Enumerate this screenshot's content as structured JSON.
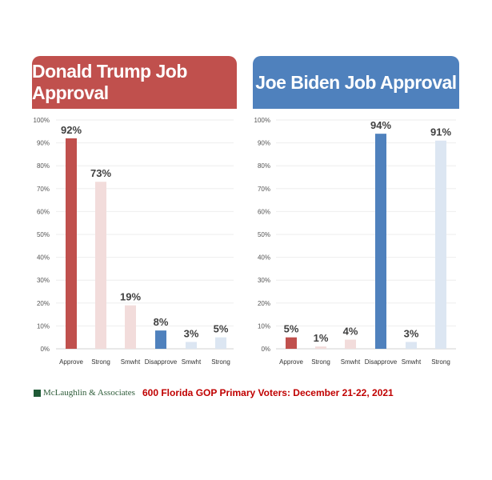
{
  "chart_data": [
    {
      "type": "bar",
      "title": "Donald Trump Job Approval",
      "categories": [
        "Approve",
        "Strong",
        "Smwht",
        "Disapprove",
        "Smwht",
        "Strong"
      ],
      "values": [
        92,
        73,
        19,
        8,
        3,
        5
      ],
      "data_labels": [
        "92%",
        "73%",
        "19%",
        "8%",
        "3%",
        "5%"
      ],
      "colors": [
        "#c0504d",
        "#f2dcdb",
        "#f2dcdb",
        "#4f81bd",
        "#dce6f2",
        "#dce6f2"
      ],
      "ylim": [
        0,
        100
      ],
      "yticks": [
        "0%",
        "10%",
        "20%",
        "30%",
        "40%",
        "50%",
        "60%",
        "70%",
        "80%",
        "90%",
        "100%"
      ],
      "grid": true,
      "header_color": "#c0504d"
    },
    {
      "type": "bar",
      "title": "Joe Biden Job Approval",
      "categories": [
        "Approve",
        "Strong",
        "Smwht",
        "Disapprove",
        "Smwht",
        "Strong"
      ],
      "values": [
        5,
        1,
        4,
        94,
        3,
        91
      ],
      "data_labels": [
        "5%",
        "1%",
        "4%",
        "94%",
        "3%",
        "91%"
      ],
      "colors": [
        "#c0504d",
        "#f2dcdb",
        "#f2dcdb",
        "#4f81bd",
        "#dce6f2",
        "#dce6f2"
      ],
      "ylim": [
        0,
        100
      ],
      "yticks": [
        "0%",
        "10%",
        "20%",
        "30%",
        "40%",
        "50%",
        "60%",
        "70%",
        "80%",
        "90%",
        "100%"
      ],
      "grid": true,
      "header_color": "#4f81bd"
    }
  ],
  "footer": {
    "logo": "McLaughlin & Associates",
    "note": "600 Florida GOP Primary Voters: December 21-22, 2021"
  }
}
